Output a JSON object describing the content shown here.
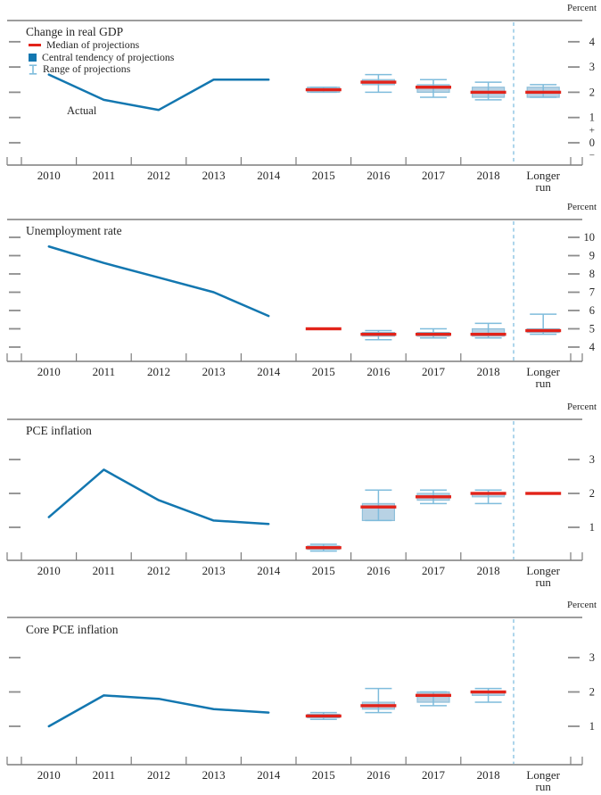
{
  "colors": {
    "actual_line": "#1377b0",
    "median": "#e2231a",
    "central_tendency_fill": "#b8d2e4",
    "central_tendency_edge": "#8fc0da",
    "range_whisker": "#7fbcdc",
    "separator_dashed": "#99cbe6",
    "axis": "#7d7d7d",
    "tick_dash": "#8c8c8c",
    "text": "#262626"
  },
  "x_axis": {
    "categories": [
      "2010",
      "2011",
      "2012",
      "2013",
      "2014",
      "2015",
      "2016",
      "2017",
      "2018",
      "Longer run"
    ]
  },
  "legend": {
    "items": [
      {
        "id": "median",
        "label": "Median of projections"
      },
      {
        "id": "central-tendency",
        "label": "Central tendency of projections"
      },
      {
        "id": "range",
        "label": "Range of projections"
      }
    ]
  },
  "chart_data": [
    {
      "key": "gdp",
      "type": "line+box-whisker",
      "title": "Change in real GDP",
      "unit_label": "Percent",
      "actual_label": "Actual",
      "yticks": [
        4,
        3,
        2,
        1,
        0
      ],
      "sign_marks": [
        {
          "label": "+",
          "value": 0.5
        },
        {
          "label": "−",
          "value": -0.5
        }
      ],
      "actual_series": {
        "categories": [
          "2010",
          "2011",
          "2012",
          "2013",
          "2014"
        ],
        "values": [
          2.7,
          1.7,
          1.3,
          2.5,
          2.5
        ]
      },
      "projections": [
        {
          "x": "2015",
          "median": 2.1,
          "central_tendency": [
            2.0,
            2.2
          ],
          "range": [
            2.0,
            2.2
          ]
        },
        {
          "x": "2016",
          "median": 2.4,
          "central_tendency": [
            2.3,
            2.5
          ],
          "range": [
            2.0,
            2.7
          ]
        },
        {
          "x": "2017",
          "median": 2.2,
          "central_tendency": [
            2.0,
            2.3
          ],
          "range": [
            1.8,
            2.5
          ]
        },
        {
          "x": "2018",
          "median": 2.0,
          "central_tendency": [
            1.8,
            2.2
          ],
          "range": [
            1.7,
            2.4
          ]
        },
        {
          "x": "Longer run",
          "median": 2.0,
          "central_tendency": [
            1.8,
            2.2
          ],
          "range": [
            1.8,
            2.3
          ]
        }
      ]
    },
    {
      "key": "unemployment",
      "type": "line+box-whisker",
      "title": "Unemployment rate",
      "unit_label": "Percent",
      "yticks": [
        10,
        9,
        8,
        7,
        6,
        5,
        4
      ],
      "actual_series": {
        "categories": [
          "2010",
          "2011",
          "2012",
          "2013",
          "2014"
        ],
        "values": [
          9.5,
          8.6,
          7.8,
          7.0,
          5.7
        ]
      },
      "projections": [
        {
          "x": "2015",
          "median": 5.0,
          "central_tendency": null,
          "range": null
        },
        {
          "x": "2016",
          "median": 4.7,
          "central_tendency": [
            4.6,
            4.8
          ],
          "range": [
            4.4,
            4.9
          ]
        },
        {
          "x": "2017",
          "median": 4.7,
          "central_tendency": [
            4.6,
            4.8
          ],
          "range": [
            4.5,
            5.0
          ]
        },
        {
          "x": "2018",
          "median": 4.7,
          "central_tendency": [
            4.6,
            5.0
          ],
          "range": [
            4.5,
            5.3
          ]
        },
        {
          "x": "Longer run",
          "median": 4.9,
          "central_tendency": [
            4.8,
            5.0
          ],
          "range": [
            4.7,
            5.8
          ]
        }
      ]
    },
    {
      "key": "pce-inflation",
      "type": "line+box-whisker",
      "title": "PCE inflation",
      "unit_label": "Percent",
      "yticks": [
        3,
        2,
        1
      ],
      "actual_series": {
        "categories": [
          "2010",
          "2011",
          "2012",
          "2013",
          "2014"
        ],
        "values": [
          1.3,
          2.7,
          1.8,
          1.2,
          1.1
        ]
      },
      "projections": [
        {
          "x": "2015",
          "median": 0.4,
          "central_tendency": [
            0.35,
            0.45
          ],
          "range": [
            0.3,
            0.5
          ]
        },
        {
          "x": "2016",
          "median": 1.6,
          "central_tendency": [
            1.2,
            1.7
          ],
          "range": [
            1.2,
            2.1
          ]
        },
        {
          "x": "2017",
          "median": 1.9,
          "central_tendency": [
            1.8,
            2.0
          ],
          "range": [
            1.7,
            2.1
          ]
        },
        {
          "x": "2018",
          "median": 2.0,
          "central_tendency": [
            1.9,
            2.0
          ],
          "range": [
            1.7,
            2.1
          ]
        },
        {
          "x": "Longer run",
          "median": 2.0,
          "central_tendency": null,
          "range": null
        }
      ]
    },
    {
      "key": "core-pce-inflation",
      "type": "line+box-whisker",
      "title": "Core PCE inflation",
      "unit_label": "Percent",
      "yticks": [
        3,
        2,
        1
      ],
      "actual_series": {
        "categories": [
          "2010",
          "2011",
          "2012",
          "2013",
          "2014"
        ],
        "values": [
          1.0,
          1.9,
          1.8,
          1.5,
          1.4
        ]
      },
      "projections": [
        {
          "x": "2015",
          "median": 1.3,
          "central_tendency": [
            1.25,
            1.35
          ],
          "range": [
            1.2,
            1.4
          ]
        },
        {
          "x": "2016",
          "median": 1.6,
          "central_tendency": [
            1.5,
            1.7
          ],
          "range": [
            1.4,
            2.1
          ]
        },
        {
          "x": "2017",
          "median": 1.9,
          "central_tendency": [
            1.7,
            2.0
          ],
          "range": [
            1.6,
            2.0
          ]
        },
        {
          "x": "2018",
          "median": 2.0,
          "central_tendency": [
            1.9,
            2.0
          ],
          "range": [
            1.7,
            2.1
          ]
        }
      ]
    }
  ]
}
